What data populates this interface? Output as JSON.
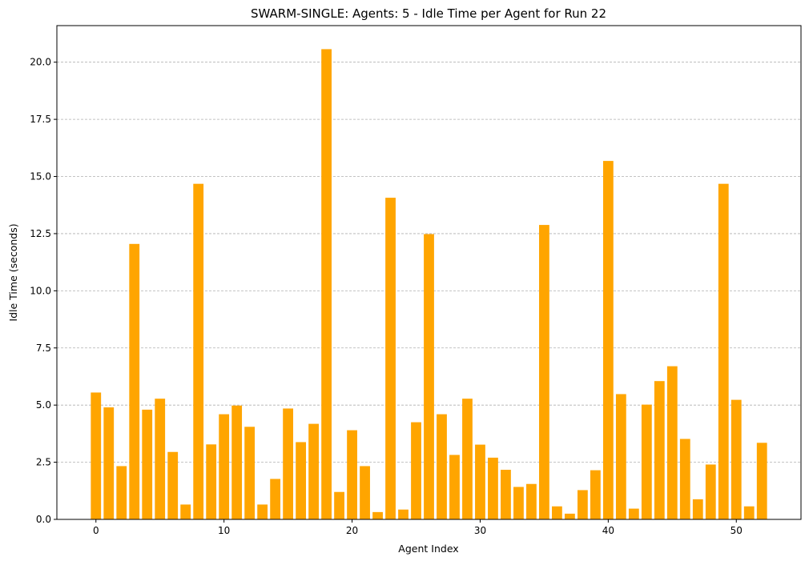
{
  "chart_data": {
    "type": "bar",
    "title": "SWARM-SINGLE: Agents: 5 - Idle Time per Agent for Run 22",
    "xlabel": "Agent Index",
    "ylabel": "Idle Time (seconds)",
    "x": [
      0,
      1,
      2,
      3,
      4,
      5,
      6,
      7,
      8,
      9,
      10,
      11,
      12,
      13,
      14,
      15,
      16,
      17,
      18,
      19,
      20,
      21,
      22,
      23,
      24,
      25,
      26,
      27,
      28,
      29,
      30,
      31,
      32,
      33,
      34,
      35,
      36,
      37,
      38,
      39,
      40,
      41,
      42,
      43,
      44,
      45,
      46,
      47,
      48,
      49,
      50,
      51,
      52
    ],
    "values": [
      5.55,
      4.9,
      2.33,
      12.05,
      4.8,
      5.28,
      2.95,
      0.65,
      14.68,
      3.28,
      4.6,
      4.98,
      4.05,
      0.65,
      1.77,
      4.85,
      3.38,
      4.18,
      20.57,
      1.2,
      3.9,
      2.33,
      0.32,
      14.07,
      0.43,
      4.25,
      12.48,
      4.6,
      2.82,
      5.28,
      3.27,
      2.7,
      2.17,
      1.42,
      1.55,
      12.88,
      0.57,
      0.25,
      1.28,
      2.15,
      15.68,
      5.48,
      0.47,
      5.02,
      6.05,
      6.7,
      3.52,
      0.88,
      2.4,
      14.68,
      5.23,
      0.57,
      3.35
    ],
    "xticks": [
      0,
      10,
      20,
      30,
      40,
      50
    ],
    "yticks": [
      0.0,
      2.5,
      5.0,
      7.5,
      10.0,
      12.5,
      15.0,
      17.5,
      20.0
    ],
    "xlim": [
      -3.05,
      55.05
    ],
    "ylim": [
      0,
      21.6
    ],
    "bar_color": "#FFA500",
    "grid": "y-dashed"
  }
}
